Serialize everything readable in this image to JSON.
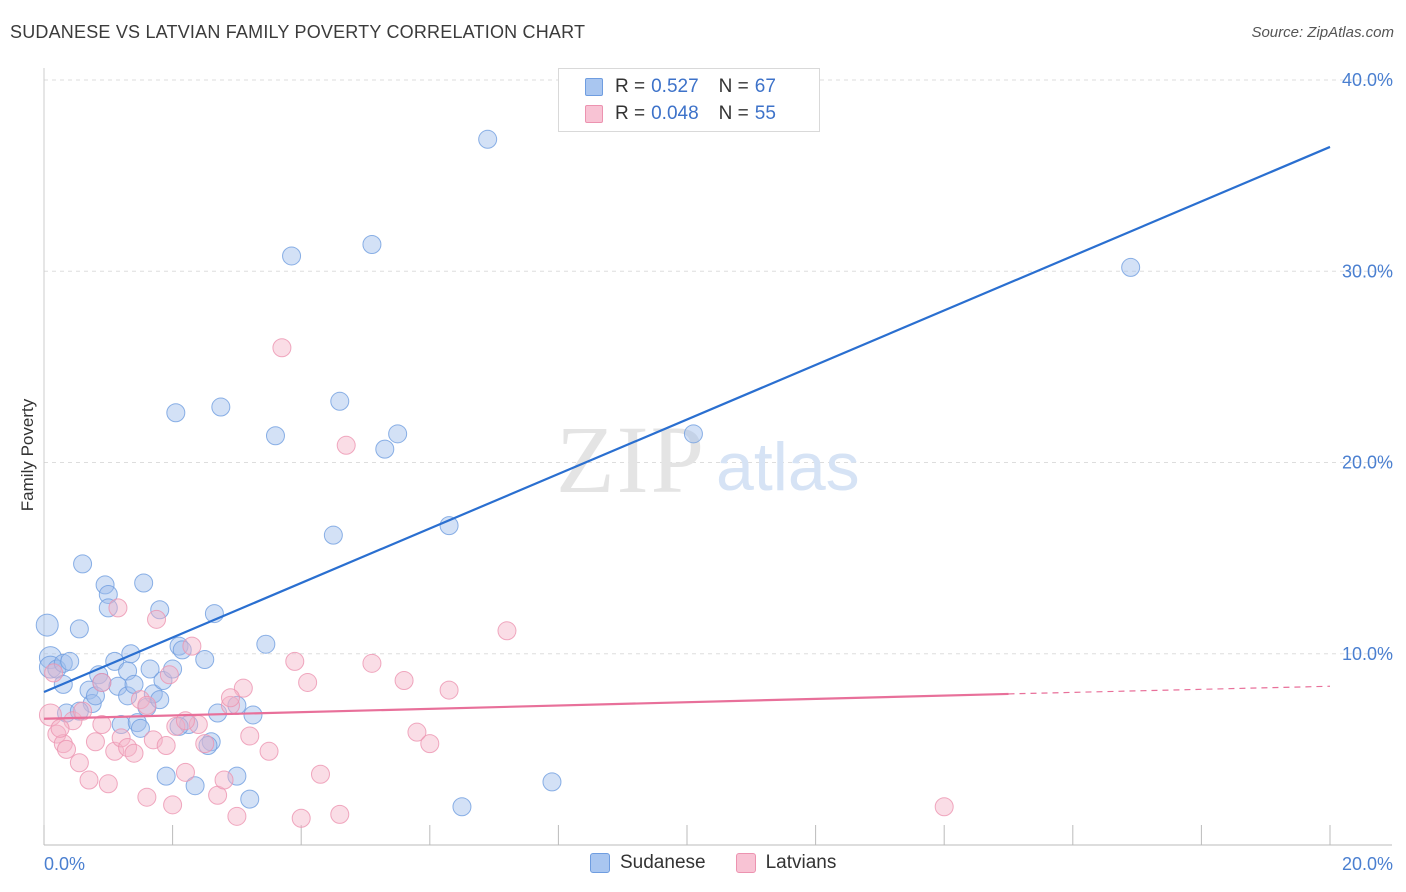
{
  "title": "SUDANESE VS LATVIAN FAMILY POVERTY CORRELATION CHART",
  "source": "Source: ZipAtlas.com",
  "watermark": {
    "zip": "ZIP",
    "atlas": "atlas"
  },
  "legend_top": {
    "rows": [
      {
        "r_label": "R =",
        "r_value": "0.527",
        "n_label": "N =",
        "n_value": "67",
        "color": "#a9c6f0",
        "border": "#6f9de0"
      },
      {
        "r_label": "R =",
        "r_value": "0.048",
        "n_label": "N =",
        "n_value": "55",
        "color": "#f8c3d4",
        "border": "#ec93b0"
      }
    ]
  },
  "legend_bottom": [
    {
      "label": "Sudanese",
      "color": "#a9c6f0",
      "border": "#6f9de0"
    },
    {
      "label": "Latvians",
      "color": "#f8c3d4",
      "border": "#ec93b0"
    }
  ],
  "colors": {
    "blue_line": "#2a6fd0",
    "pink_line": "#e8709a",
    "blue_point": "#9dbdec",
    "pink_point": "#f5b3c8",
    "tick_label": "#4a7fd0",
    "grid": "#dddddd"
  },
  "chart_data": {
    "type": "scatter",
    "title": "SUDANESE VS LATVIAN FAMILY POVERTY CORRELATION CHART",
    "xlabel": "",
    "ylabel": "Family Poverty",
    "xlim": [
      0,
      20
    ],
    "ylim": [
      0,
      40
    ],
    "x_tick_labels": [
      "0.0%",
      "20.0%"
    ],
    "y_tick_values": [
      10,
      20,
      30,
      40
    ],
    "y_tick_labels": [
      "10.0%",
      "20.0%",
      "30.0%",
      "40.0%"
    ],
    "grid": true,
    "series": [
      {
        "name": "Sudanese",
        "r": 0.527,
        "n": 67,
        "trend": {
          "x": [
            0,
            20
          ],
          "y": [
            8.0,
            36.5
          ]
        },
        "points": [
          [
            0.05,
            11.5
          ],
          [
            0.1,
            9.8
          ],
          [
            0.1,
            9.3
          ],
          [
            0.2,
            9.2
          ],
          [
            0.3,
            9.5
          ],
          [
            0.4,
            9.6
          ],
          [
            0.3,
            8.4
          ],
          [
            0.55,
            11.3
          ],
          [
            0.6,
            14.7
          ],
          [
            0.7,
            8.1
          ],
          [
            0.75,
            7.4
          ],
          [
            0.8,
            7.8
          ],
          [
            0.85,
            8.9
          ],
          [
            0.9,
            8.5
          ],
          [
            0.95,
            13.6
          ],
          [
            1.0,
            13.1
          ],
          [
            1.1,
            9.6
          ],
          [
            1.15,
            8.3
          ],
          [
            1.2,
            6.3
          ],
          [
            1.3,
            9.1
          ],
          [
            1.3,
            7.8
          ],
          [
            1.35,
            10.0
          ],
          [
            1.4,
            8.4
          ],
          [
            1.45,
            6.4
          ],
          [
            1.5,
            6.1
          ],
          [
            1.55,
            13.7
          ],
          [
            1.6,
            7.2
          ],
          [
            1.65,
            9.2
          ],
          [
            1.7,
            7.9
          ],
          [
            1.8,
            7.6
          ],
          [
            1.8,
            12.3
          ],
          [
            1.85,
            8.6
          ],
          [
            1.9,
            3.6
          ],
          [
            2.0,
            9.2
          ],
          [
            2.05,
            22.6
          ],
          [
            2.1,
            10.4
          ],
          [
            2.15,
            10.2
          ],
          [
            2.25,
            6.3
          ],
          [
            2.35,
            3.1
          ],
          [
            2.5,
            9.7
          ],
          [
            2.6,
            5.4
          ],
          [
            2.65,
            12.1
          ],
          [
            2.7,
            6.9
          ],
          [
            2.75,
            22.9
          ],
          [
            3.0,
            7.3
          ],
          [
            3.0,
            3.6
          ],
          [
            3.2,
            2.4
          ],
          [
            3.25,
            6.8
          ],
          [
            3.45,
            10.5
          ],
          [
            3.6,
            21.4
          ],
          [
            3.85,
            30.8
          ],
          [
            4.5,
            16.2
          ],
          [
            4.6,
            23.2
          ],
          [
            5.1,
            31.4
          ],
          [
            5.3,
            20.7
          ],
          [
            5.5,
            21.5
          ],
          [
            6.3,
            16.7
          ],
          [
            6.5,
            2.0
          ],
          [
            6.9,
            36.9
          ],
          [
            7.9,
            3.3
          ],
          [
            10.1,
            21.5
          ],
          [
            16.9,
            30.2
          ],
          [
            0.35,
            6.9
          ],
          [
            0.55,
            7.0
          ],
          [
            1.0,
            12.4
          ],
          [
            2.1,
            6.2
          ],
          [
            2.55,
            5.2
          ]
        ]
      },
      {
        "name": "Latvians",
        "r": 0.048,
        "n": 55,
        "trend": {
          "x": [
            0,
            15
          ],
          "y": [
            6.6,
            7.9
          ]
        },
        "trend_dashed": {
          "x": [
            15,
            20
          ],
          "y": [
            7.9,
            8.3
          ]
        },
        "points": [
          [
            0.1,
            6.8
          ],
          [
            0.2,
            5.8
          ],
          [
            0.3,
            5.3
          ],
          [
            0.35,
            5.0
          ],
          [
            0.45,
            6.5
          ],
          [
            0.55,
            4.3
          ],
          [
            0.6,
            7.0
          ],
          [
            0.7,
            3.4
          ],
          [
            0.8,
            5.4
          ],
          [
            0.9,
            6.3
          ],
          [
            1.0,
            3.2
          ],
          [
            1.1,
            4.9
          ],
          [
            1.15,
            12.4
          ],
          [
            1.2,
            5.6
          ],
          [
            1.3,
            5.1
          ],
          [
            1.4,
            4.8
          ],
          [
            1.5,
            7.6
          ],
          [
            1.6,
            2.5
          ],
          [
            1.7,
            5.5
          ],
          [
            1.75,
            11.8
          ],
          [
            1.9,
            5.2
          ],
          [
            2.0,
            2.1
          ],
          [
            2.05,
            6.2
          ],
          [
            2.2,
            3.8
          ],
          [
            2.3,
            10.4
          ],
          [
            2.4,
            6.3
          ],
          [
            2.5,
            5.3
          ],
          [
            2.7,
            2.6
          ],
          [
            2.8,
            3.4
          ],
          [
            2.9,
            7.3
          ],
          [
            3.0,
            1.5
          ],
          [
            3.1,
            8.2
          ],
          [
            3.5,
            4.9
          ],
          [
            3.7,
            26.0
          ],
          [
            3.9,
            9.6
          ],
          [
            4.0,
            1.4
          ],
          [
            4.1,
            8.5
          ],
          [
            4.3,
            3.7
          ],
          [
            4.6,
            1.6
          ],
          [
            4.7,
            20.9
          ],
          [
            5.1,
            9.5
          ],
          [
            5.6,
            8.6
          ],
          [
            5.8,
            5.9
          ],
          [
            6.0,
            5.3
          ],
          [
            6.3,
            8.1
          ],
          [
            7.2,
            11.2
          ],
          [
            14.0,
            2.0
          ],
          [
            0.15,
            9.0
          ],
          [
            0.25,
            6.1
          ],
          [
            0.9,
            8.5
          ],
          [
            1.6,
            7.3
          ],
          [
            2.2,
            6.5
          ],
          [
            2.9,
            7.7
          ],
          [
            3.2,
            5.7
          ],
          [
            1.95,
            8.9
          ]
        ]
      }
    ]
  }
}
